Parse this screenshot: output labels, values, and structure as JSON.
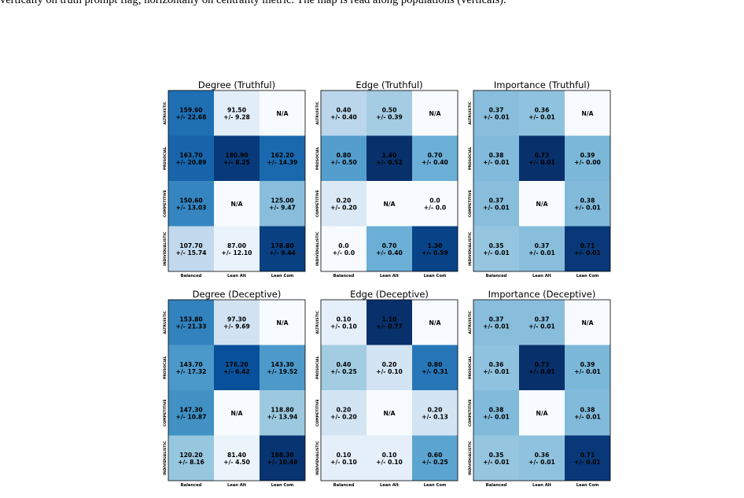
{
  "caption": {
    "top_line": "vertically on truth prompt flag; horizontally on centrality metric. The map is read along populations (verticals).",
    "bottom_line": ""
  },
  "colors": {
    "scale": [
      "#f7fbff",
      "#deebf7",
      "#c6dbef",
      "#9ecae1",
      "#6baed6",
      "#4292c6",
      "#2171b5",
      "#08519c",
      "#08306b"
    ],
    "na_fill": "#f7fbff",
    "text_on_light": "#000000",
    "text_on_dark": "#000000"
  },
  "chart_data": [
    {
      "type": "heatmap",
      "title": "Degree (Truthful)",
      "rows": [
        "ALTRUISTIC",
        "PROSOCIAL",
        "COMPETITIVE",
        "INDIVIDUALISTIC"
      ],
      "cols": [
        "Balanced",
        "Lean Alt",
        "Lean Com"
      ],
      "values": [
        [
          159.6,
          91.5,
          null
        ],
        [
          163.7,
          180.9,
          162.2
        ],
        [
          150.6,
          null,
          125.0
        ],
        [
          107.7,
          87.0,
          178.8
        ]
      ],
      "labels": [
        [
          [
            "159.60",
            "+/- 22.68"
          ],
          [
            "91.50",
            "+/- 9.28"
          ],
          [
            "N/A"
          ]
        ],
        [
          [
            "163.70",
            "+/- 20.89"
          ],
          [
            "180.90",
            "+/- 8.25"
          ],
          [
            "162.20",
            "+/- 14.39"
          ]
        ],
        [
          [
            "150.60",
            "+/- 13.03"
          ],
          [
            "N/A"
          ],
          [
            "125.00",
            "+/- 9.47"
          ]
        ],
        [
          [
            "107.70",
            "+/- 15.74"
          ],
          [
            "87.00",
            "+/- 12.10"
          ],
          [
            "178.80",
            "+/- 9.44"
          ]
        ]
      ],
      "color_range": [
        80,
        185
      ]
    },
    {
      "type": "heatmap",
      "title": "Edge (Truthful)",
      "rows": [
        "ALTRUISTIC",
        "PROSOCIAL",
        "COMPETITIVE",
        "INDIVIDUALISTIC"
      ],
      "cols": [
        "Balanced",
        "Lean Alt",
        "Lean Com"
      ],
      "values": [
        [
          0.4,
          0.5,
          null
        ],
        [
          0.8,
          1.4,
          0.7
        ],
        [
          0.2,
          null,
          0.0
        ],
        [
          0.0,
          0.7,
          1.3
        ]
      ],
      "labels": [
        [
          [
            "0.40",
            "+/- 0.40"
          ],
          [
            "0.50",
            "+/- 0.39"
          ],
          [
            "N/A"
          ]
        ],
        [
          [
            "0.80",
            "+/- 0.50"
          ],
          [
            "1.40",
            "+/- 0.52"
          ],
          [
            "0.70",
            "+/- 0.40"
          ]
        ],
        [
          [
            "0.20",
            "+/- 0.20"
          ],
          [
            "N/A"
          ],
          [
            "0.0",
            "+/- 0.0"
          ]
        ],
        [
          [
            "0.0",
            "+/- 0.0"
          ],
          [
            "0.70",
            "+/- 0.40"
          ],
          [
            "1.30",
            "+/- 0.59"
          ]
        ]
      ],
      "color_range": [
        0,
        1.4
      ]
    },
    {
      "type": "heatmap",
      "title": "Importance (Truthful)",
      "rows": [
        "ALTRUISTIC",
        "PROSOCIAL",
        "COMPETITIVE",
        "INDIVIDUALISTIC"
      ],
      "cols": [
        "Balanced",
        "Lean Alt",
        "Lean Com"
      ],
      "values": [
        [
          0.37,
          0.36,
          null
        ],
        [
          0.38,
          0.73,
          0.39
        ],
        [
          0.37,
          null,
          0.38
        ],
        [
          0.35,
          0.37,
          0.71
        ]
      ],
      "labels": [
        [
          [
            "0.37",
            "+/- 0.01"
          ],
          [
            "0.36",
            "+/- 0.01"
          ],
          [
            "N/A"
          ]
        ],
        [
          [
            "0.38",
            "+/- 0.01"
          ],
          [
            "0.73",
            "+/- 0.01"
          ],
          [
            "0.39",
            "+/- 0.00"
          ]
        ],
        [
          [
            "0.37",
            "+/- 0.01"
          ],
          [
            "N/A"
          ],
          [
            "0.38",
            "+/- 0.01"
          ]
        ],
        [
          [
            "0.35",
            "+/- 0.01"
          ],
          [
            "0.37",
            "+/- 0.01"
          ],
          [
            "0.71",
            "+/- 0.01"
          ]
        ]
      ],
      "color_range": [
        0.1,
        0.73
      ]
    },
    {
      "type": "heatmap",
      "title": "Degree (Deceptive)",
      "rows": [
        "ALTRUISTIC",
        "PROSOCIAL",
        "COMPETITIVE",
        "INDIVIDUALISTIC"
      ],
      "cols": [
        "Balanced",
        "Lean Alt",
        "Lean Com"
      ],
      "values": [
        [
          153.8,
          97.3,
          null
        ],
        [
          143.7,
          176.2,
          143.3
        ],
        [
          147.3,
          null,
          118.8
        ],
        [
          120.2,
          81.4,
          188.3
        ]
      ],
      "labels": [
        [
          [
            "153.80",
            "+/- 21.33"
          ],
          [
            "97.30",
            "+/- 9.69"
          ],
          [
            "N/A"
          ]
        ],
        [
          [
            "143.70",
            "+/- 17.32"
          ],
          [
            "176.20",
            "+/- 6.42"
          ],
          [
            "143.30",
            "+/- 19.52"
          ]
        ],
        [
          [
            "147.30",
            "+/- 10.87"
          ],
          [
            "N/A"
          ],
          [
            "118.80",
            "+/- 13.94"
          ]
        ],
        [
          [
            "120.20",
            "+/- 8.16"
          ],
          [
            "81.40",
            "+/- 4.50"
          ],
          [
            "188.30",
            "+/- 10.48"
          ]
        ]
      ],
      "color_range": [
        75,
        190
      ]
    },
    {
      "type": "heatmap",
      "title": "Edge (Deceptive)",
      "rows": [
        "ALTRUISTIC",
        "PROSOCIAL",
        "COMPETITIVE",
        "INDIVIDUALISTIC"
      ],
      "cols": [
        "Balanced",
        "Lean Alt",
        "Lean Com"
      ],
      "values": [
        [
          0.1,
          1.1,
          null
        ],
        [
          0.4,
          0.2,
          0.8
        ],
        [
          0.2,
          null,
          0.2
        ],
        [
          0.1,
          0.1,
          0.6
        ]
      ],
      "labels": [
        [
          [
            "0.10",
            "+/- 0.10"
          ],
          [
            "1.10",
            "+/- 0.77"
          ],
          [
            "N/A"
          ]
        ],
        [
          [
            "0.40",
            "+/- 0.25"
          ],
          [
            "0.20",
            "+/- 0.10"
          ],
          [
            "0.80",
            "+/- 0.31"
          ]
        ],
        [
          [
            "0.20",
            "+/- 0.20"
          ],
          [
            "N/A"
          ],
          [
            "0.20",
            "+/- 0.13"
          ]
        ],
        [
          [
            "0.10",
            "+/- 0.10"
          ],
          [
            "0.10",
            "+/- 0.10"
          ],
          [
            "0.60",
            "+/- 0.25"
          ]
        ]
      ],
      "color_range": [
        0,
        1.1
      ]
    },
    {
      "type": "heatmap",
      "title": "Importance (Deceptive)",
      "rows": [
        "ALTRUISTIC",
        "PROSOCIAL",
        "COMPETITIVE",
        "INDIVIDUALISTIC"
      ],
      "cols": [
        "Balanced",
        "Lean Alt",
        "Lean Com"
      ],
      "values": [
        [
          0.37,
          0.37,
          null
        ],
        [
          0.36,
          0.73,
          0.39
        ],
        [
          0.38,
          null,
          0.38
        ],
        [
          0.35,
          0.36,
          0.71
        ]
      ],
      "labels": [
        [
          [
            "0.37",
            "+/- 0.01"
          ],
          [
            "0.37",
            "+/- 0.01"
          ],
          [
            "N/A"
          ]
        ],
        [
          [
            "0.36",
            "+/- 0.01"
          ],
          [
            "0.73",
            "+/- 0.01"
          ],
          [
            "0.39",
            "+/- 0.01"
          ]
        ],
        [
          [
            "0.38",
            "+/- 0.01"
          ],
          [
            "N/A"
          ],
          [
            "0.38",
            "+/- 0.01"
          ]
        ],
        [
          [
            "0.35",
            "+/- 0.01"
          ],
          [
            "0.36",
            "+/- 0.01"
          ],
          [
            "0.71",
            "+/- 0.01"
          ]
        ]
      ],
      "color_range": [
        0.1,
        0.73
      ]
    }
  ]
}
